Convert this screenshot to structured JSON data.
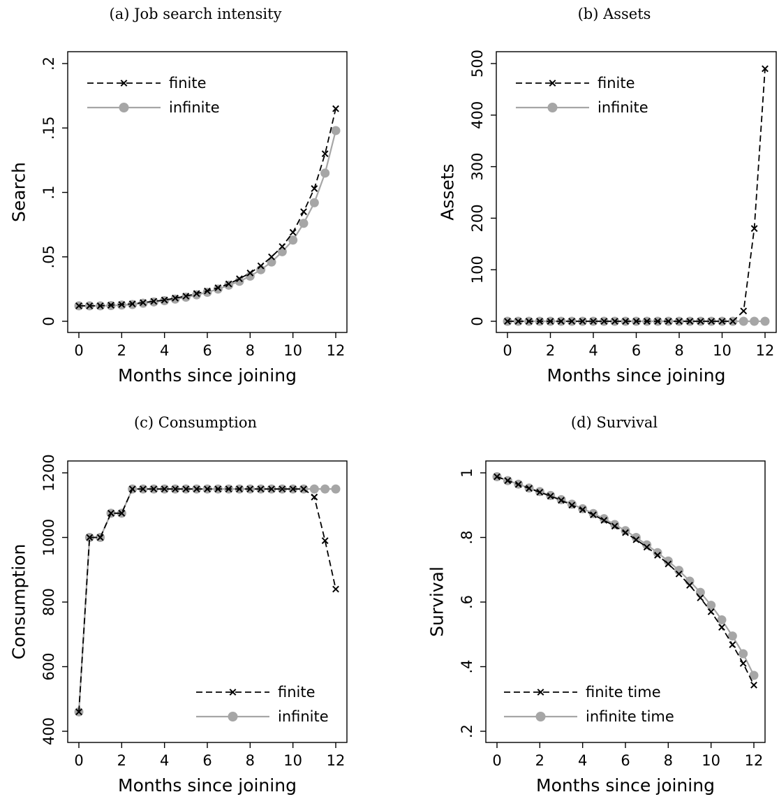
{
  "chart_data": [
    {
      "panel": "a",
      "type": "line",
      "title": "(a) Job search intensity",
      "xlabel": "Months since joining",
      "ylabel": "Search",
      "xlim": [
        0,
        12
      ],
      "ylim": [
        0,
        0.2
      ],
      "xticks": [
        0,
        2,
        4,
        6,
        8,
        10,
        12
      ],
      "xtick_labels": [
        "0",
        "2",
        "4",
        "6",
        "8",
        "10",
        "12"
      ],
      "yticks": [
        0,
        0.05,
        0.1,
        0.15,
        0.2
      ],
      "ytick_labels": [
        "0",
        ".05",
        ".1",
        ".15",
        ".2"
      ],
      "legend_position": "top-left",
      "x": [
        0,
        0.5,
        1,
        1.5,
        2,
        2.5,
        3,
        3.5,
        4,
        4.5,
        5,
        5.5,
        6,
        6.5,
        7,
        7.5,
        8,
        8.5,
        9,
        9.5,
        10,
        10.5,
        11,
        11.5,
        12
      ],
      "series": [
        {
          "name": "finite",
          "style": "dashed-x",
          "color": "#000000",
          "values": [
            0.012,
            0.012,
            0.012,
            0.0125,
            0.013,
            0.0135,
            0.0145,
            0.0155,
            0.0165,
            0.018,
            0.0195,
            0.0215,
            0.0235,
            0.026,
            0.029,
            0.033,
            0.0375,
            0.043,
            0.05,
            0.058,
            0.069,
            0.085,
            0.103,
            0.13,
            0.165
          ]
        },
        {
          "name": "infinite",
          "style": "solid-dot",
          "color": "#a6a6a6",
          "values": [
            0.012,
            0.012,
            0.012,
            0.0122,
            0.0126,
            0.013,
            0.014,
            0.015,
            0.016,
            0.0172,
            0.0187,
            0.0205,
            0.0225,
            0.025,
            0.028,
            0.031,
            0.035,
            0.04,
            0.046,
            0.054,
            0.063,
            0.076,
            0.092,
            0.115,
            0.148
          ]
        }
      ]
    },
    {
      "panel": "b",
      "type": "line",
      "title": "(b) Assets",
      "xlabel": "Months since joining",
      "ylabel": "Assets",
      "xlim": [
        0,
        12
      ],
      "ylim": [
        0,
        500
      ],
      "xticks": [
        0,
        2,
        4,
        6,
        8,
        10,
        12
      ],
      "xtick_labels": [
        "0",
        "2",
        "4",
        "6",
        "8",
        "10",
        "12"
      ],
      "yticks": [
        0,
        100,
        200,
        300,
        400,
        500
      ],
      "ytick_labels": [
        "0",
        "100",
        "200",
        "300",
        "400",
        "500"
      ],
      "legend_position": "top-left",
      "x": [
        0,
        0.5,
        1,
        1.5,
        2,
        2.5,
        3,
        3.5,
        4,
        4.5,
        5,
        5.5,
        6,
        6.5,
        7,
        7.5,
        8,
        8.5,
        9,
        9.5,
        10,
        10.5,
        11,
        11.5,
        12
      ],
      "series": [
        {
          "name": "finite",
          "style": "dashed-x",
          "color": "#000000",
          "values": [
            0,
            0,
            0,
            0,
            0,
            0,
            0,
            0,
            0,
            0,
            0,
            0,
            0,
            0,
            0,
            0,
            0,
            0,
            0,
            0,
            0,
            0,
            20,
            180,
            490
          ]
        },
        {
          "name": "infinite",
          "style": "solid-dot",
          "color": "#a6a6a6",
          "values": [
            0,
            0,
            0,
            0,
            0,
            0,
            0,
            0,
            0,
            0,
            0,
            0,
            0,
            0,
            0,
            0,
            0,
            0,
            0,
            0,
            0,
            0,
            0,
            0,
            0
          ]
        }
      ]
    },
    {
      "panel": "c",
      "type": "line",
      "title": "(c) Consumption",
      "xlabel": "Months since joining",
      "ylabel": "Consumption",
      "xlim": [
        0,
        12
      ],
      "ylim": [
        400,
        1200
      ],
      "xticks": [
        0,
        2,
        4,
        6,
        8,
        10,
        12
      ],
      "xtick_labels": [
        "0",
        "2",
        "4",
        "6",
        "8",
        "10",
        "12"
      ],
      "yticks": [
        400,
        600,
        800,
        1000,
        1200
      ],
      "ytick_labels": [
        "400",
        "600",
        "800",
        "1000",
        "1200"
      ],
      "legend_position": "bottom-right",
      "x": [
        0,
        0.5,
        1,
        1.5,
        2,
        2.5,
        3,
        3.5,
        4,
        4.5,
        5,
        5.5,
        6,
        6.5,
        7,
        7.5,
        8,
        8.5,
        9,
        9.5,
        10,
        10.5,
        11,
        11.5,
        12
      ],
      "series": [
        {
          "name": "finite",
          "style": "dashed-x",
          "color": "#000000",
          "values": [
            460,
            1000,
            1000,
            1075,
            1075,
            1150,
            1150,
            1150,
            1150,
            1150,
            1150,
            1150,
            1150,
            1150,
            1150,
            1150,
            1150,
            1150,
            1150,
            1150,
            1150,
            1150,
            1125,
            990,
            840
          ]
        },
        {
          "name": "infinite",
          "style": "solid-dot",
          "color": "#a6a6a6",
          "values": [
            460,
            1000,
            1000,
            1075,
            1075,
            1150,
            1150,
            1150,
            1150,
            1150,
            1150,
            1150,
            1150,
            1150,
            1150,
            1150,
            1150,
            1150,
            1150,
            1150,
            1150,
            1150,
            1150,
            1150,
            1150
          ]
        }
      ]
    },
    {
      "panel": "d",
      "type": "line",
      "title": "(d) Survival",
      "xlabel": "Months since joining",
      "ylabel": "Survival",
      "xlim": [
        0,
        12
      ],
      "ylim": [
        0.2,
        1
      ],
      "xticks": [
        0,
        2,
        4,
        6,
        8,
        10,
        12
      ],
      "xtick_labels": [
        "0",
        "2",
        "4",
        "6",
        "8",
        "10",
        "12"
      ],
      "yticks": [
        0.2,
        0.4,
        0.6,
        0.8,
        1
      ],
      "ytick_labels": [
        ".2",
        ".4",
        ".6",
        ".8",
        "1"
      ],
      "legend_position": "bottom-left",
      "x": [
        0,
        0.5,
        1,
        1.5,
        2,
        2.5,
        3,
        3.5,
        4,
        4.5,
        5,
        5.5,
        6,
        6.5,
        7,
        7.5,
        8,
        8.5,
        9,
        9.5,
        10,
        10.5,
        11,
        11.5,
        12
      ],
      "series": [
        {
          "name": "finite time",
          "style": "dashed-x",
          "color": "#000000",
          "values": [
            0.988,
            0.976,
            0.964,
            0.952,
            0.94,
            0.928,
            0.915,
            0.9,
            0.886,
            0.87,
            0.853,
            0.835,
            0.815,
            0.793,
            0.77,
            0.745,
            0.718,
            0.687,
            0.652,
            0.613,
            0.57,
            0.522,
            0.468,
            0.41,
            0.343
          ]
        },
        {
          "name": "infinite time",
          "style": "solid-dot",
          "color": "#a6a6a6",
          "values": [
            0.988,
            0.976,
            0.965,
            0.953,
            0.942,
            0.93,
            0.917,
            0.903,
            0.889,
            0.874,
            0.858,
            0.84,
            0.821,
            0.8,
            0.777,
            0.753,
            0.727,
            0.698,
            0.665,
            0.63,
            0.59,
            0.545,
            0.495,
            0.44,
            0.373
          ]
        }
      ]
    }
  ]
}
